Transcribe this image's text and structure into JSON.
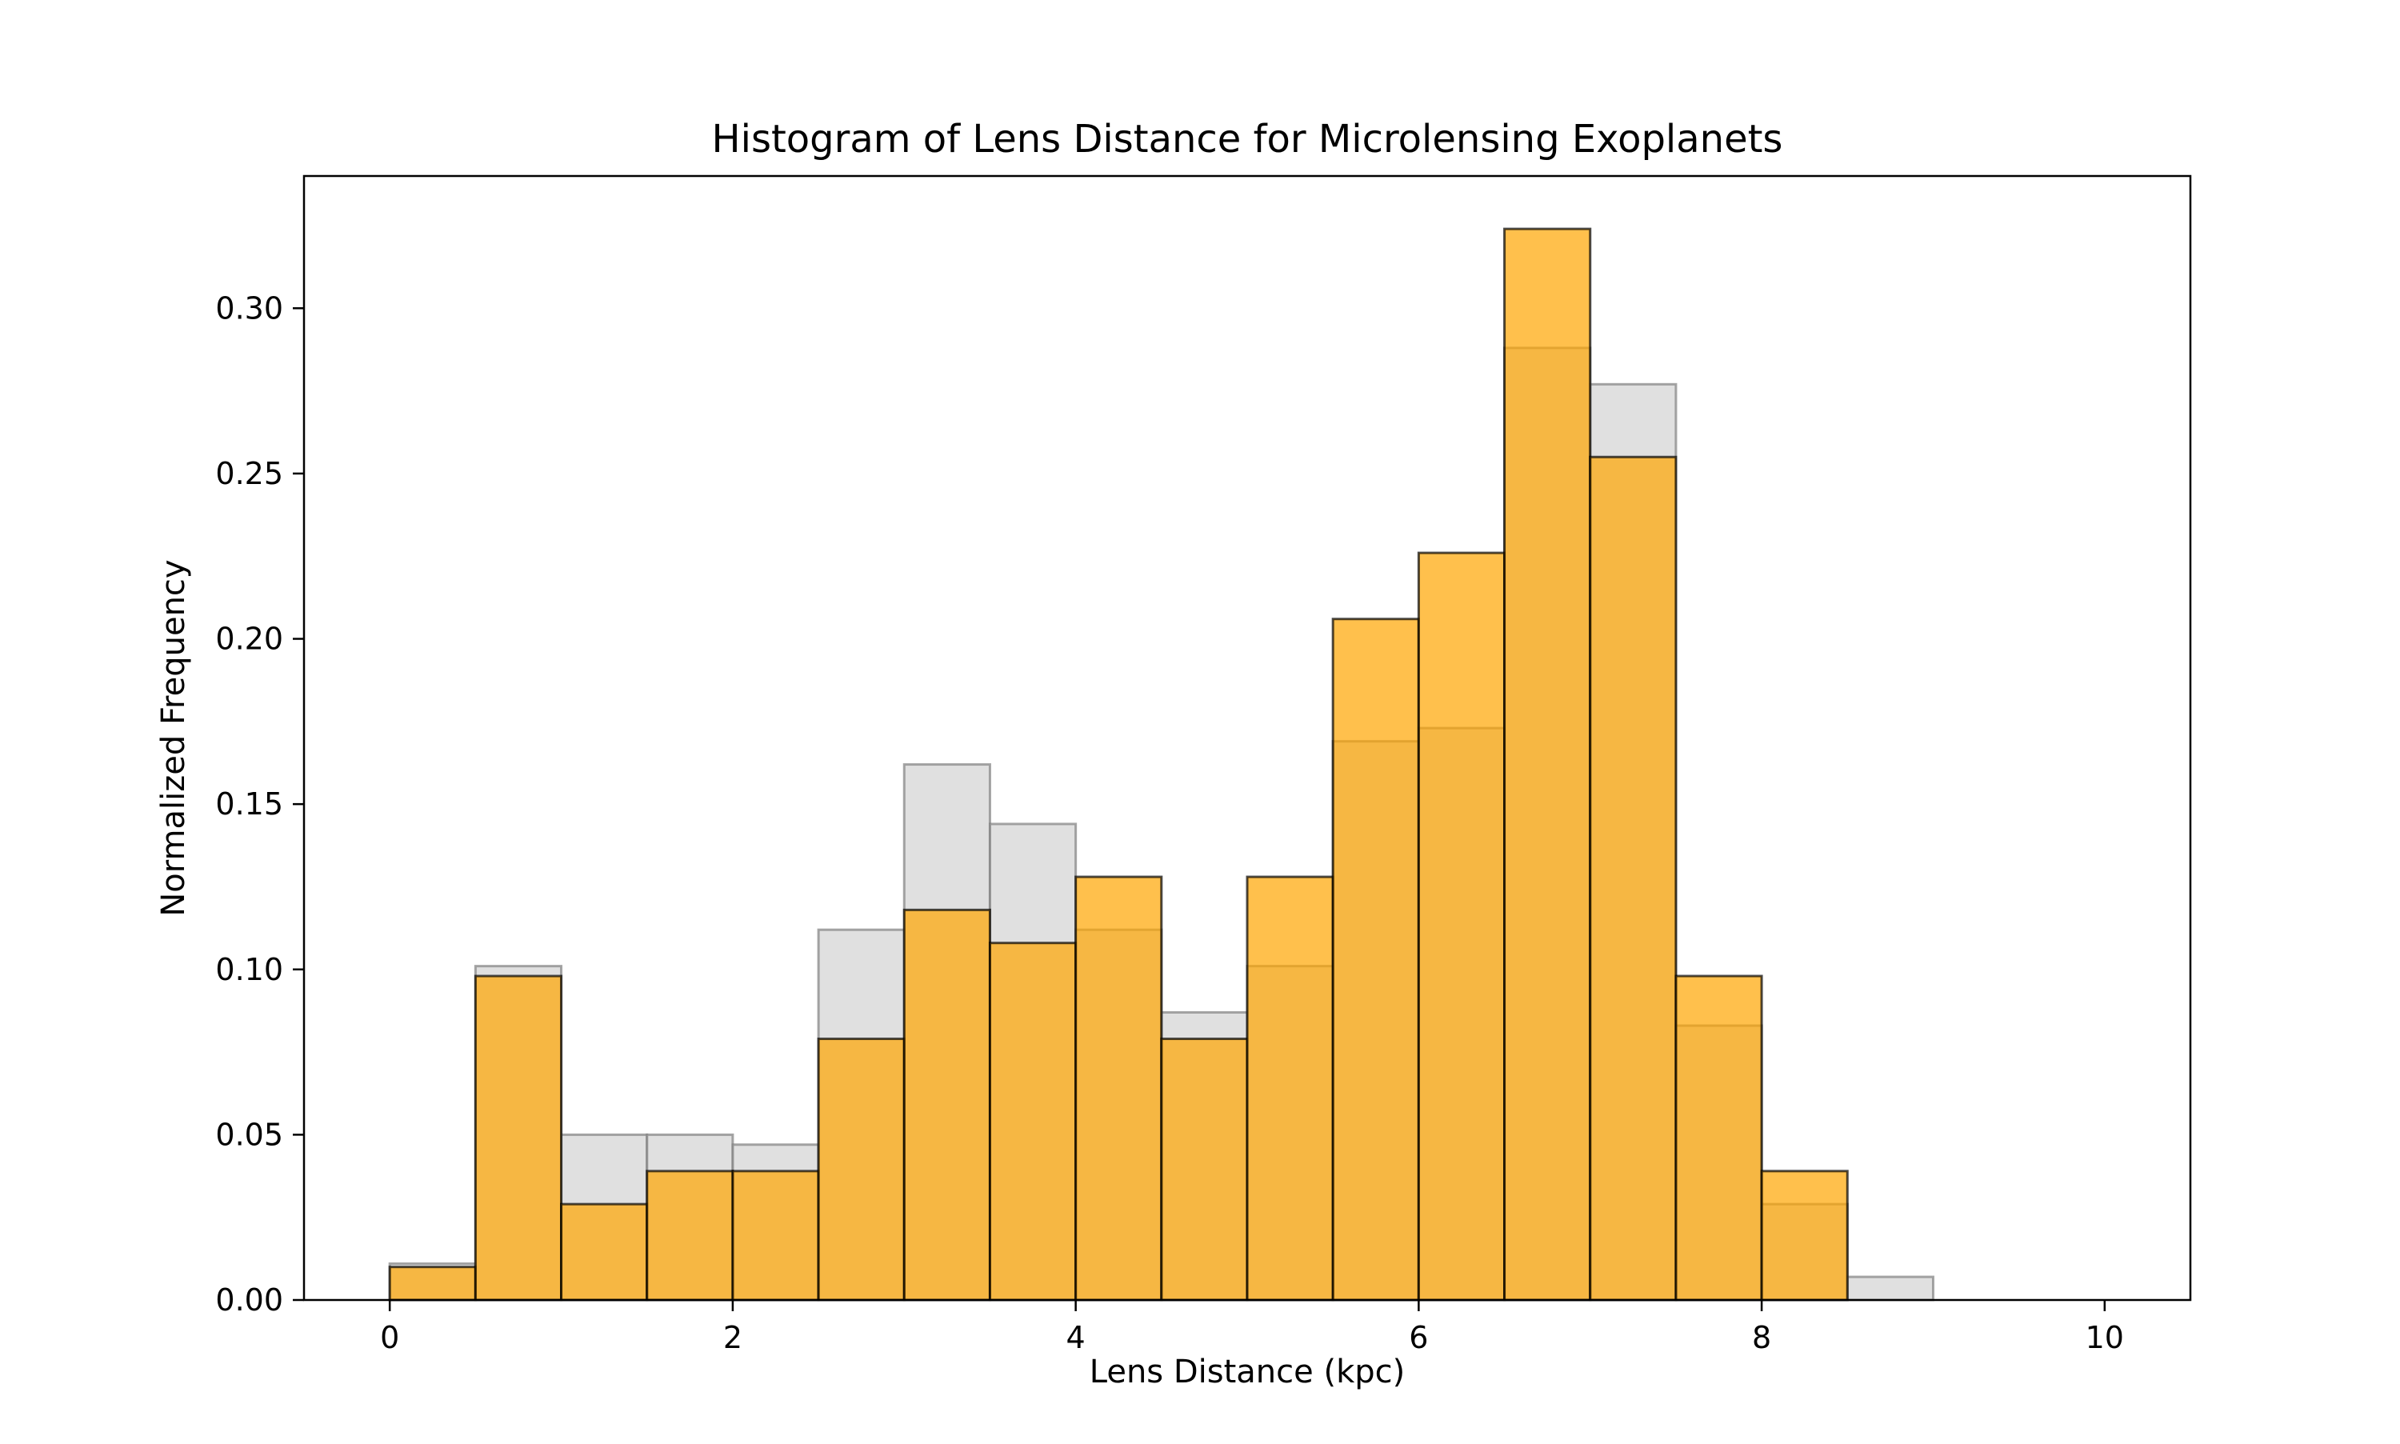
{
  "chart_data": {
    "type": "bar",
    "title": "Histogram of Lens Distance for Microlensing Exoplanets",
    "xlabel": "Lens Distance (kpc)",
    "ylabel": "Normalized Frequency",
    "xlim": [
      -0.5,
      10.5
    ],
    "ylim": [
      0,
      0.34
    ],
    "grid": false,
    "x_ticks": [
      0,
      2,
      4,
      6,
      8,
      10
    ],
    "x_tick_labels": [
      "0",
      "2",
      "4",
      "6",
      "8",
      "10"
    ],
    "y_ticks": [
      0.0,
      0.05,
      0.1,
      0.15,
      0.2,
      0.25,
      0.3
    ],
    "y_tick_labels": [
      "0.00",
      "0.05",
      "0.10",
      "0.15",
      "0.20",
      "0.25",
      "0.30"
    ],
    "bin_edges": [
      0,
      0.5,
      1,
      1.5,
      2,
      2.5,
      3,
      3.5,
      4,
      4.5,
      5,
      5.5,
      6,
      6.5,
      7,
      7.5,
      8,
      8.5,
      9,
      9.5,
      10
    ],
    "series": [
      {
        "color": "#d3d3d3",
        "edge_color": "#808080",
        "values": [
          0.011,
          0.101,
          0.05,
          0.05,
          0.047,
          0.112,
          0.162,
          0.144,
          0.112,
          0.087,
          0.101,
          0.169,
          0.173,
          0.288,
          0.277,
          0.083,
          0.029,
          0.007,
          0.0,
          0.0
        ]
      },
      {
        "color": "#ffa500",
        "edge_color": "#000000",
        "values": [
          0.01,
          0.098,
          0.029,
          0.039,
          0.039,
          0.079,
          0.118,
          0.108,
          0.128,
          0.079,
          0.128,
          0.206,
          0.226,
          0.324,
          0.255,
          0.098,
          0.039,
          0.0,
          0.0,
          0.0
        ]
      }
    ]
  }
}
